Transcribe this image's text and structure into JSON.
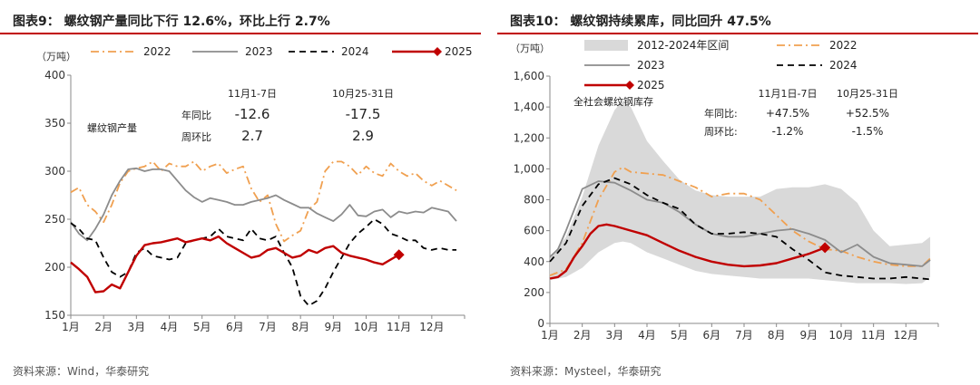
{
  "charts": {
    "left": {
      "title": "图表9：  螺纹钢产量同比下行 12.6%，环比上行 2.7%",
      "source": "资料来源：Wind，华泰研究",
      "colors": {
        "s2022": "#f0a050",
        "s2023": "#8c8c8c",
        "s2024": "#000000",
        "s2025": "#c00000"
      }
    },
    "right": {
      "title": "图表10：  螺纹钢持续累库，同比回升 47.5%",
      "source": "资料来源：Mysteel，华泰研究",
      "colors": {
        "band": "#d9d9d9",
        "s2022": "#f0a050",
        "s2023": "#8c8c8c",
        "s2024": "#000000",
        "s2025": "#c00000"
      }
    }
  },
  "chart_data": [
    {
      "type": "line",
      "title": "图表9：  螺纹钢产量同比下行 12.6%，环比上行 2.7%",
      "ylabel": "（万吨）",
      "ylim": [
        150,
        400
      ],
      "yticks": [
        "150",
        "200",
        "250",
        "300",
        "350",
        "400"
      ],
      "xlim": [
        1,
        13
      ],
      "categories": [
        "1月",
        "2月",
        "3月",
        "4月",
        "5月",
        "6月",
        "7月",
        "8月",
        "9月",
        "10月",
        "11月",
        "12月"
      ],
      "legend": [
        "2022",
        "2023",
        "2024",
        "2025"
      ],
      "series": [
        {
          "name": "2022",
          "style": "dashdot",
          "x": [
            1.0,
            1.25,
            1.5,
            1.75,
            2.0,
            2.25,
            2.5,
            2.75,
            3.0,
            3.25,
            3.5,
            3.75,
            4.0,
            4.25,
            4.5,
            4.75,
            5.0,
            5.25,
            5.5,
            5.75,
            6.0,
            6.25,
            6.5,
            6.75,
            7.0,
            7.25,
            7.5,
            7.75,
            8.0,
            8.25,
            8.5,
            8.75,
            9.0,
            9.25,
            9.5,
            9.75,
            10.0,
            10.25,
            10.5,
            10.75,
            11.0,
            11.25,
            11.5,
            11.75,
            12.0,
            12.25,
            12.5,
            12.75
          ],
          "values": [
            278,
            283,
            265,
            258,
            247,
            265,
            288,
            300,
            303,
            305,
            310,
            300,
            308,
            305,
            305,
            310,
            300,
            305,
            308,
            298,
            302,
            305,
            282,
            268,
            275,
            245,
            227,
            233,
            238,
            260,
            268,
            300,
            310,
            310,
            305,
            296,
            305,
            298,
            295,
            308,
            300,
            295,
            298,
            290,
            285,
            290,
            285,
            280
          ]
        },
        {
          "name": "2023",
          "style": "solid",
          "x": [
            1.0,
            1.25,
            1.5,
            1.75,
            2.0,
            2.25,
            2.5,
            2.75,
            3.0,
            3.25,
            3.5,
            3.75,
            4.0,
            4.25,
            4.5,
            4.75,
            5.0,
            5.25,
            5.5,
            5.75,
            6.0,
            6.25,
            6.5,
            6.75,
            7.0,
            7.25,
            7.5,
            7.75,
            8.0,
            8.25,
            8.5,
            8.75,
            9.0,
            9.25,
            9.5,
            9.75,
            10.0,
            10.25,
            10.5,
            10.75,
            11.0,
            11.25,
            11.5,
            11.75,
            12.0,
            12.25,
            12.5,
            12.75
          ],
          "values": [
            247,
            235,
            228,
            240,
            255,
            275,
            290,
            302,
            303,
            300,
            302,
            302,
            300,
            290,
            280,
            273,
            268,
            272,
            270,
            268,
            265,
            265,
            268,
            270,
            272,
            275,
            270,
            266,
            262,
            262,
            256,
            252,
            248,
            255,
            265,
            254,
            253,
            258,
            260,
            252,
            258,
            256,
            258,
            257,
            262,
            260,
            258,
            248
          ]
        },
        {
          "name": "2024",
          "style": "dashed",
          "x": [
            1.0,
            1.25,
            1.5,
            1.75,
            2.0,
            2.25,
            2.5,
            2.75,
            3.0,
            3.25,
            3.5,
            3.75,
            4.0,
            4.25,
            4.5,
            4.75,
            5.0,
            5.25,
            5.5,
            5.75,
            6.0,
            6.25,
            6.5,
            6.75,
            7.0,
            7.25,
            7.5,
            7.75,
            8.0,
            8.25,
            8.5,
            8.75,
            9.0,
            9.25,
            9.5,
            9.75,
            10.0,
            10.25,
            10.5,
            10.75,
            11.0,
            11.25,
            11.5,
            11.75,
            12.0,
            12.25,
            12.5,
            12.75
          ],
          "values": [
            246,
            240,
            230,
            228,
            210,
            195,
            190,
            195,
            215,
            220,
            212,
            210,
            208,
            210,
            225,
            228,
            230,
            232,
            240,
            232,
            230,
            228,
            240,
            230,
            228,
            232,
            215,
            200,
            170,
            160,
            165,
            178,
            195,
            210,
            225,
            235,
            242,
            250,
            245,
            235,
            232,
            228,
            228,
            220,
            218,
            220,
            218,
            218
          ]
        },
        {
          "name": "2025",
          "style": "solid",
          "x": [
            1.0,
            1.25,
            1.5,
            1.75,
            2.0,
            2.25,
            2.5,
            2.75,
            3.0,
            3.25,
            3.5,
            3.75,
            4.0,
            4.25,
            4.5,
            4.75,
            5.0,
            5.25,
            5.5,
            5.75,
            6.0,
            6.25,
            6.5,
            6.75,
            7.0,
            7.25,
            7.5,
            7.75,
            8.0,
            8.25,
            8.5,
            8.75,
            9.0,
            9.25,
            9.5,
            9.75,
            10.0,
            10.25,
            10.5,
            10.75,
            11.0
          ],
          "values": [
            205,
            198,
            190,
            174,
            175,
            182,
            178,
            195,
            212,
            223,
            225,
            226,
            228,
            230,
            226,
            228,
            230,
            228,
            232,
            225,
            220,
            215,
            210,
            212,
            218,
            220,
            215,
            210,
            212,
            218,
            215,
            220,
            222,
            215,
            212,
            210,
            208,
            205,
            203,
            208,
            213
          ]
        }
      ],
      "annotations": {
        "series_label": "螺纹钢产量",
        "header_a": "11月1-7日",
        "header_b": "10月25-31日",
        "row1_label": "年同比",
        "row1_a": "-12.6",
        "row1_b": "-17.5",
        "row2_label": "周环比",
        "row2_a": "2.7",
        "row2_b": "2.9"
      }
    },
    {
      "type": "line",
      "title": "图表10：  螺纹钢持续累库，同比回升 47.5%",
      "ylabel": "（万吨）",
      "ylim": [
        0,
        1600
      ],
      "yticks": [
        "0",
        "200",
        "400",
        "600",
        "800",
        "1,000",
        "1,200",
        "1,400",
        "1,600"
      ],
      "xlim": [
        1,
        13
      ],
      "categories": [
        "1月",
        "2月",
        "3月",
        "4月",
        "5月",
        "6月",
        "7月",
        "8月",
        "9月",
        "10月",
        "11月",
        "12月"
      ],
      "legend": [
        "2012-2024年区间",
        "2022",
        "2023",
        "2024",
        "2025"
      ],
      "band": {
        "name": "2012-2024年区间",
        "x": [
          1.0,
          1.5,
          2.0,
          2.5,
          3.0,
          3.25,
          3.5,
          4.0,
          4.5,
          5.0,
          5.5,
          6.0,
          6.5,
          7.0,
          7.5,
          8.0,
          8.5,
          9.0,
          9.5,
          10.0,
          10.5,
          11.0,
          11.5,
          12.0,
          12.5,
          12.75
        ],
        "upper": [
          420,
          560,
          820,
          1150,
          1380,
          1440,
          1400,
          1180,
          1050,
          930,
          860,
          830,
          820,
          820,
          820,
          870,
          880,
          880,
          900,
          870,
          780,
          600,
          500,
          510,
          520,
          560
        ],
        "lower": [
          280,
          300,
          360,
          460,
          520,
          530,
          520,
          460,
          420,
          380,
          340,
          320,
          310,
          300,
          290,
          290,
          290,
          290,
          280,
          270,
          260,
          260,
          260,
          255,
          260,
          300
        ]
      },
      "series": [
        {
          "name": "2022",
          "style": "dashdot",
          "x": [
            1.0,
            1.5,
            2.0,
            2.5,
            3.0,
            3.25,
            3.5,
            4.0,
            4.5,
            5.0,
            5.5,
            6.0,
            6.5,
            7.0,
            7.5,
            8.0,
            8.5,
            9.0,
            9.5,
            10.0,
            10.5,
            11.0,
            11.5,
            12.0,
            12.5,
            12.75
          ],
          "values": [
            310,
            350,
            520,
            800,
            980,
            1010,
            980,
            970,
            960,
            920,
            880,
            820,
            840,
            840,
            800,
            700,
            600,
            530,
            480,
            470,
            430,
            400,
            380,
            370,
            370,
            420
          ]
        },
        {
          "name": "2023",
          "style": "solid",
          "x": [
            1.0,
            1.25,
            1.5,
            2.0,
            2.5,
            3.0,
            3.5,
            4.0,
            4.5,
            5.0,
            5.5,
            6.0,
            6.5,
            7.0,
            7.5,
            8.0,
            8.5,
            9.0,
            9.5,
            10.0,
            10.5,
            11.0,
            11.5,
            12.0,
            12.5,
            12.75
          ],
          "values": [
            430,
            480,
            600,
            870,
            920,
            910,
            860,
            800,
            780,
            720,
            640,
            580,
            560,
            560,
            580,
            600,
            610,
            580,
            540,
            460,
            510,
            430,
            390,
            380,
            370,
            410
          ]
        },
        {
          "name": "2024",
          "style": "dashed",
          "x": [
            1.0,
            1.5,
            2.0,
            2.5,
            3.0,
            3.5,
            4.0,
            4.5,
            5.0,
            5.5,
            6.0,
            6.5,
            7.0,
            7.5,
            8.0,
            8.5,
            9.0,
            9.5,
            10.0,
            10.5,
            11.0,
            11.5,
            12.0,
            12.5,
            12.75
          ],
          "values": [
            400,
            520,
            760,
            900,
            940,
            900,
            830,
            780,
            740,
            640,
            580,
            580,
            590,
            580,
            560,
            480,
            410,
            330,
            310,
            300,
            290,
            290,
            300,
            290,
            285
          ]
        },
        {
          "name": "2025",
          "style": "solid",
          "x": [
            1.0,
            1.25,
            1.5,
            1.75,
            2.0,
            2.25,
            2.5,
            2.75,
            3.0,
            3.5,
            4.0,
            4.5,
            5.0,
            5.5,
            6.0,
            6.5,
            7.0,
            7.5,
            8.0,
            8.5,
            9.0,
            9.5
          ],
          "values": [
            290,
            300,
            340,
            430,
            500,
            580,
            630,
            640,
            630,
            600,
            570,
            520,
            470,
            430,
            400,
            380,
            370,
            375,
            390,
            420,
            450,
            490
          ]
        }
      ],
      "annotations": {
        "series_label": "全社会螺纹钢库存",
        "header_a": "11月1日-7日",
        "header_b": "10月25-31日",
        "row1_label": "年同比:",
        "row1_a": "+47.5%",
        "row1_b": "+52.5%",
        "row2_label": "周环比:",
        "row2_a": "-1.2%",
        "row2_b": "-1.5%"
      }
    }
  ]
}
